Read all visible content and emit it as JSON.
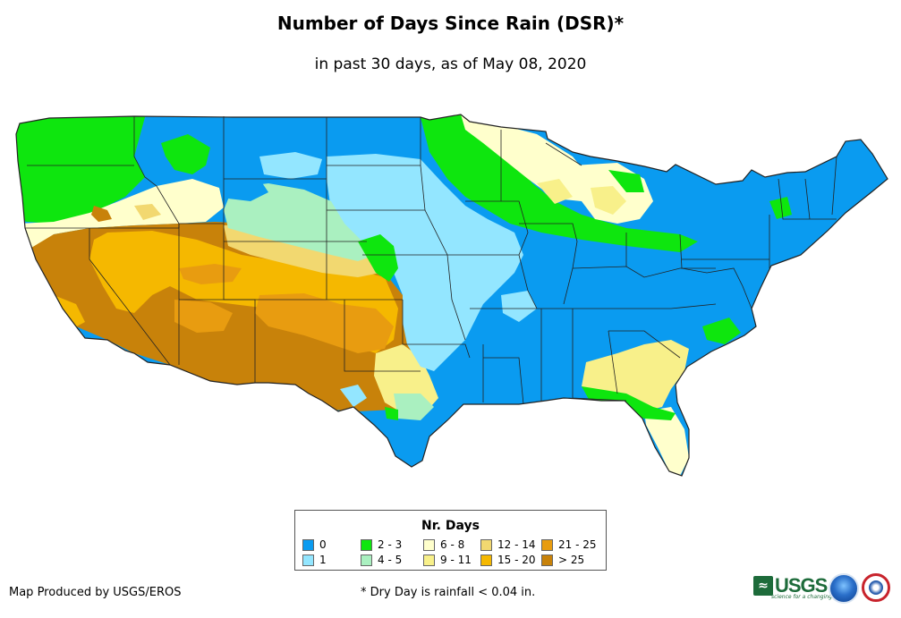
{
  "title": "Number of Days Since Rain (DSR)*",
  "subtitle": "in past 30 days, as of May 08, 2020",
  "legend": {
    "title": "Nr. Days",
    "items": [
      {
        "label": "0",
        "color": "#0a9bf0"
      },
      {
        "label": "1",
        "color": "#93e6ff"
      },
      {
        "label": "2 - 3",
        "color": "#0ee60e"
      },
      {
        "label": "4 - 5",
        "color": "#aaf0c0"
      },
      {
        "label": "6 - 8",
        "color": "#ffffcc"
      },
      {
        "label": "9 - 11",
        "color": "#f8f08a"
      },
      {
        "label": "12 - 14",
        "color": "#f2d870"
      },
      {
        "label": "15 - 20",
        "color": "#f5b800"
      },
      {
        "label": "21 - 25",
        "color": "#e89c10"
      },
      {
        "label": "> 25",
        "color": "#c8820a"
      }
    ]
  },
  "credit": "Map Produced by USGS/EROS",
  "footnote": "* Dry Day is rainfall < 0.04 in.",
  "logos": {
    "usgs": "USGS",
    "usgs_tagline": "science for a changing world"
  }
}
